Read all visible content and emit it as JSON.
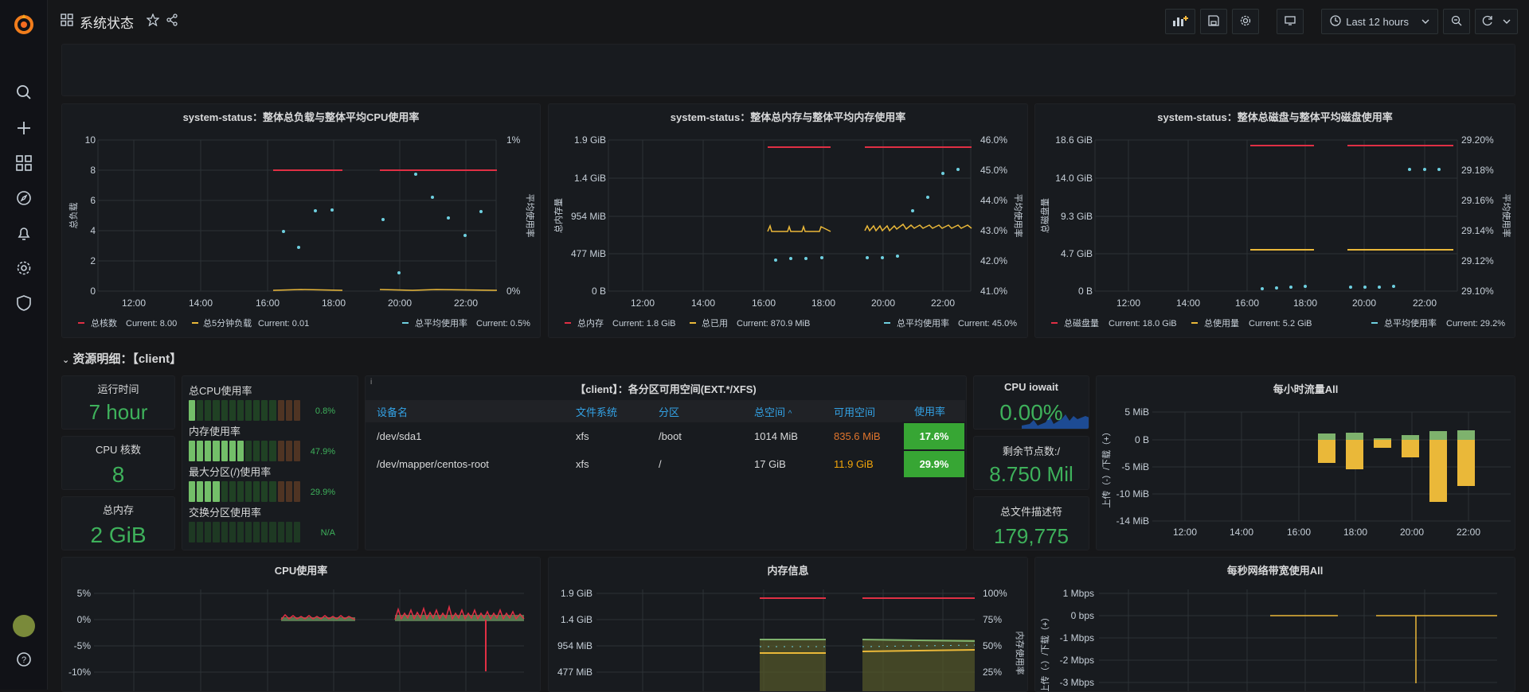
{
  "dashboard": {
    "title": "系统状态"
  },
  "toolbar": {
    "time_range": "Last 12 hours"
  },
  "colors": {
    "green": "#3eb15b",
    "red": "#e02f44",
    "yellow": "#eab839",
    "cyan": "#6ed0e0",
    "blue": "#33a2e5",
    "orange": "#ff7830"
  },
  "panels": {
    "cpu_load": {
      "title": "system-status：整体总负载与整体平均CPU使用率",
      "left_ticks": [
        "10",
        "8",
        "6",
        "4",
        "2",
        "0"
      ],
      "right_ticks": [
        "1%",
        "0%"
      ],
      "x_ticks": [
        "12:00",
        "14:00",
        "16:00",
        "18:00",
        "20:00",
        "22:00"
      ],
      "ylabel_left": "总负载",
      "ylabel_right": "平均使用率",
      "legend": [
        {
          "name": "总核数",
          "current": "Current: 8.00"
        },
        {
          "name": "总5分钟负载",
          "current": "Current: 0.01"
        },
        {
          "name": "总平均使用率",
          "current": "Current: 0.5%"
        }
      ]
    },
    "mem": {
      "title": "system-status：整体总内存与整体平均内存使用率",
      "left_ticks": [
        "1.9 GiB",
        "1.4 GiB",
        "954 MiB",
        "477 MiB",
        "0 B"
      ],
      "right_ticks": [
        "46.0%",
        "45.0%",
        "44.0%",
        "43.0%",
        "42.0%",
        "41.0%"
      ],
      "x_ticks": [
        "12:00",
        "14:00",
        "16:00",
        "18:00",
        "20:00",
        "22:00"
      ],
      "ylabel_left": "总内存量",
      "ylabel_right": "平均使用率",
      "legend": [
        {
          "name": "总内存",
          "current": "Current: 1.8 GiB"
        },
        {
          "name": "总已用",
          "current": "Current: 870.9 MiB"
        },
        {
          "name": "总平均使用率",
          "current": "Current: 45.0%"
        }
      ]
    },
    "disk": {
      "title": "system-status：整体总磁盘与整体平均磁盘使用率",
      "left_ticks": [
        "18.6 GiB",
        "14.0 GiB",
        "9.3 GiB",
        "4.7 GiB",
        "0 B"
      ],
      "right_ticks": [
        "29.20%",
        "29.18%",
        "29.16%",
        "29.14%",
        "29.12%",
        "29.10%"
      ],
      "x_ticks": [
        "12:00",
        "14:00",
        "16:00",
        "18:00",
        "20:00",
        "22:00"
      ],
      "ylabel_left": "总磁盘量",
      "ylabel_right": "平均使用率",
      "legend": [
        {
          "name": "总磁盘量",
          "current": "Current: 18.0 GiB"
        },
        {
          "name": "总使用量",
          "current": "Current: 5.2 GiB"
        },
        {
          "name": "总平均使用率",
          "current": "Current: 29.2%"
        }
      ]
    }
  },
  "row": {
    "title": "资源明细：【client】"
  },
  "stats": {
    "uptime": {
      "title": "运行时间",
      "value": "7 hour"
    },
    "cpu_cores": {
      "title": "CPU 核数",
      "value": "8"
    },
    "total_mem": {
      "title": "总内存",
      "value": "2 GiB"
    },
    "iowait": {
      "title": "CPU iowait",
      "value": "0.00%"
    },
    "inodes": {
      "title": "剩余节点数:/",
      "value": "8.750 Mil"
    },
    "fd": {
      "title": "总文件描述符",
      "value": "179,775"
    }
  },
  "bargauge": [
    {
      "label": "总CPU使用率",
      "value": "0.8%",
      "fill": 0.008
    },
    {
      "label": "内存使用率",
      "value": "47.9%",
      "fill": 0.479
    },
    {
      "label": "最大分区(/)使用率",
      "value": "29.9%",
      "fill": 0.299
    },
    {
      "label": "交换分区使用率",
      "value": "N/A",
      "fill": 0
    }
  ],
  "partition_table": {
    "title": "【client】：各分区可用空间(EXT.*/XFS)",
    "info": "i",
    "headers": [
      "设备名",
      "文件系统",
      "分区",
      "总空间",
      "可用空间",
      "使用率"
    ],
    "sort_indicator": "^",
    "rows": [
      [
        "/dev/sda1",
        "xfs",
        "/boot",
        "1014 MiB",
        "835.6 MiB",
        "17.6%"
      ],
      [
        "/dev/mapper/centos-root",
        "xfs",
        "/",
        "17 GiB",
        "11.9 GiB",
        "29.9%"
      ]
    ]
  },
  "hourly_traffic": {
    "title": "每小时流量All",
    "y_ticks": [
      "5 MiB",
      "0 B",
      "-5 MiB",
      "-10 MiB",
      "-14 MiB"
    ],
    "x_ticks": [
      "12:00",
      "14:00",
      "16:00",
      "18:00",
      "20:00",
      "22:00"
    ],
    "ylabel": "上传（-）/下载（+）"
  },
  "bottom": {
    "cpu_usage": {
      "title": "CPU使用率",
      "y_ticks": [
        "5%",
        "0%",
        "-5%",
        "-10%"
      ]
    },
    "mem_info": {
      "title": "内存信息",
      "left_ticks": [
        "1.9 GiB",
        "1.4 GiB",
        "954 MiB",
        "477 MiB"
      ],
      "right_ticks": [
        "100%",
        "75%",
        "50%",
        "25%"
      ],
      "ylabel_right": "内存使用率"
    },
    "net_bw": {
      "title": "每秒网络带宽使用All",
      "y_ticks": [
        "1 Mbps",
        "0 bps",
        "-1 Mbps",
        "-2 Mbps",
        "-3 Mbps"
      ],
      "ylabel": "上传（-）/下载（+）"
    }
  }
}
